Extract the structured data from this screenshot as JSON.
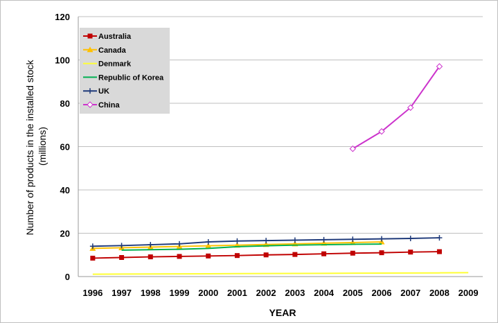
{
  "chart_data": {
    "type": "line",
    "title": "",
    "xlabel": "YEAR",
    "ylabel": "Number of products in the installed stock (millions)",
    "ylabel_lines": [
      "Number of products in the installed stock",
      "(millions)"
    ],
    "xlim": [
      1996,
      2009
    ],
    "ylim": [
      0,
      120
    ],
    "x_ticks": [
      1996,
      1997,
      1998,
      1999,
      2000,
      2001,
      2002,
      2003,
      2004,
      2005,
      2006,
      2007,
      2008,
      2009
    ],
    "y_ticks": [
      0,
      20,
      40,
      60,
      80,
      100,
      120
    ],
    "grid": true,
    "legend_position": "top-left",
    "series": [
      {
        "name": "Australia",
        "color": "#c00000",
        "marker": "square",
        "x": [
          1996,
          1997,
          1998,
          1999,
          2000,
          2001,
          2002,
          2003,
          2004,
          2005,
          2006,
          2007,
          2008
        ],
        "y": [
          8.5,
          8.8,
          9.1,
          9.3,
          9.5,
          9.7,
          10.0,
          10.2,
          10.5,
          10.8,
          11.0,
          11.3,
          11.5
        ]
      },
      {
        "name": "Canada",
        "color": "#ffc000",
        "marker": "triangle",
        "x": [
          1996,
          1997,
          1998,
          1999,
          2000,
          2001,
          2002,
          2003,
          2004,
          2005,
          2006
        ],
        "y": [
          13.0,
          13.3,
          13.6,
          13.9,
          14.2,
          14.5,
          14.8,
          15.1,
          15.4,
          15.7,
          16.0
        ]
      },
      {
        "name": "Denmark",
        "color": "#ffff33",
        "marker": "none",
        "x": [
          1996,
          1997,
          1998,
          1999,
          2000,
          2001,
          2002,
          2003,
          2004,
          2005,
          2006,
          2007,
          2008,
          2009
        ],
        "y": [
          1.1,
          1.15,
          1.2,
          1.25,
          1.3,
          1.35,
          1.4,
          1.45,
          1.5,
          1.55,
          1.6,
          1.65,
          1.7,
          1.8
        ]
      },
      {
        "name": "Republic of Korea",
        "color": "#00b050",
        "marker": "none",
        "x": [
          1997,
          1998,
          1999,
          2000,
          2001,
          2002,
          2003,
          2004,
          2005,
          2006
        ],
        "y": [
          12.2,
          12.4,
          12.6,
          13.0,
          13.8,
          14.2,
          14.5,
          14.7,
          14.9,
          15.0
        ]
      },
      {
        "name": "UK",
        "color": "#1f3a7a",
        "marker": "plus",
        "x": [
          1996,
          1997,
          1998,
          1999,
          2000,
          2001,
          2002,
          2003,
          2004,
          2005,
          2006,
          2007,
          2008
        ],
        "y": [
          14.0,
          14.3,
          14.7,
          15.1,
          16.0,
          16.4,
          16.6,
          16.8,
          17.0,
          17.2,
          17.4,
          17.6,
          17.9
        ]
      },
      {
        "name": "China",
        "color": "#cc33cc",
        "marker": "diamond",
        "x": [
          2005,
          2006,
          2007,
          2008
        ],
        "y": [
          59,
          67,
          78,
          97
        ]
      }
    ]
  }
}
